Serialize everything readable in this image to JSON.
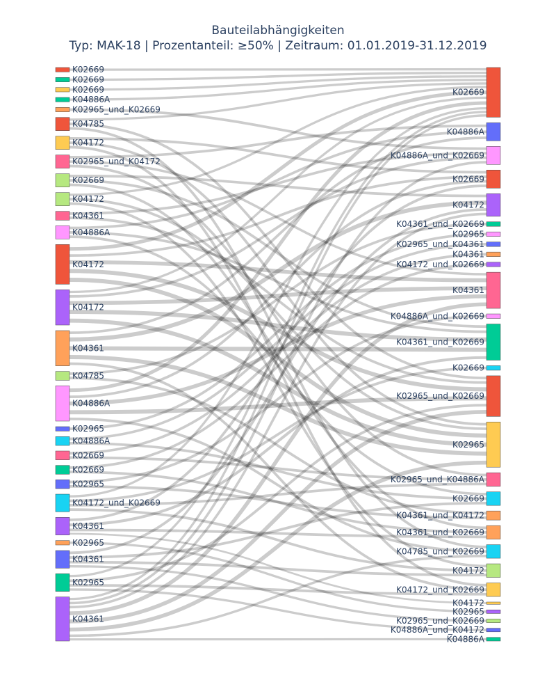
{
  "chart_data": {
    "type": "sankey",
    "title": "Bauteilabhängigkeiten",
    "subtitle": "Typ: MAK-18 | Prozentanteil: ≥50% | Zeitraum: 01.01.2019-31.12.2019",
    "sources": [
      {
        "label": "K02669",
        "value": 1,
        "color": "#EF553B"
      },
      {
        "label": "K02669",
        "value": 1,
        "color": "#00CC96"
      },
      {
        "label": "K02669",
        "value": 1,
        "color": "#FECB52"
      },
      {
        "label": "K04886A",
        "value": 1,
        "color": "#00CC96"
      },
      {
        "label": "K02965_und_K02669",
        "value": 1,
        "color": "#FFA15A"
      },
      {
        "label": "K04785",
        "value": 3,
        "color": "#EF553B"
      },
      {
        "label": "K04172",
        "value": 3,
        "color": "#FECB52"
      },
      {
        "label": "K02965_und_K04172",
        "value": 3,
        "color": "#FF6692"
      },
      {
        "label": "K02669",
        "value": 3,
        "color": "#B6E880"
      },
      {
        "label": "K04172",
        "value": 3,
        "color": "#B6E880"
      },
      {
        "label": "K04361",
        "value": 2,
        "color": "#FF6692"
      },
      {
        "label": "K04886A",
        "value": 3,
        "color": "#FF97FF"
      },
      {
        "label": "K04172",
        "value": 9,
        "color": "#EF553B"
      },
      {
        "label": "K04172",
        "value": 8,
        "color": "#AB63FA"
      },
      {
        "label": "K04361",
        "value": 8,
        "color": "#FFA15A"
      },
      {
        "label": "K04785",
        "value": 2,
        "color": "#B6E880"
      },
      {
        "label": "K04886A",
        "value": 8,
        "color": "#FF97FF"
      },
      {
        "label": "K02965",
        "value": 1,
        "color": "#636EFA"
      },
      {
        "label": "K04886A",
        "value": 2,
        "color": "#19D3F3"
      },
      {
        "label": "K02669",
        "value": 2,
        "color": "#FF6692"
      },
      {
        "label": "K02669",
        "value": 2,
        "color": "#00CC96"
      },
      {
        "label": "K02965",
        "value": 2,
        "color": "#636EFA"
      },
      {
        "label": "K04172_und_K02669",
        "value": 4,
        "color": "#19D3F3"
      },
      {
        "label": "K04361",
        "value": 4,
        "color": "#AB63FA"
      },
      {
        "label": "K02965",
        "value": 1,
        "color": "#FFA15A"
      },
      {
        "label": "K04361",
        "value": 4,
        "color": "#636EFA"
      },
      {
        "label": "K02965",
        "value": 4,
        "color": "#00CC96"
      },
      {
        "label": "K04361",
        "value": 10,
        "color": "#AB63FA"
      }
    ],
    "targets": [
      {
        "label": "K02669",
        "value": 11,
        "color": "#EF553B"
      },
      {
        "label": "K04886A",
        "value": 4,
        "color": "#636EFA"
      },
      {
        "label": "K04886A_und_K02669",
        "value": 4,
        "color": "#FF97FF"
      },
      {
        "label": "K02669",
        "value": 4,
        "color": "#EF553B"
      },
      {
        "label": "K04172",
        "value": 5,
        "color": "#AB63FA"
      },
      {
        "label": "K04361_und_K02669",
        "value": 1,
        "color": "#00CC96"
      },
      {
        "label": "K02965",
        "value": 1,
        "color": "#FF97FF"
      },
      {
        "label": "K02965_und_K04361",
        "value": 1,
        "color": "#636EFA"
      },
      {
        "label": "K04361",
        "value": 1,
        "color": "#FFA15A"
      },
      {
        "label": "K04172_und_K02669",
        "value": 1,
        "color": "#AB63FA"
      },
      {
        "label": "K04361",
        "value": 8,
        "color": "#FF6692"
      },
      {
        "label": "K04886A_und_K02669",
        "value": 1,
        "color": "#FF97FF"
      },
      {
        "label": "K04361_und_K02669",
        "value": 8,
        "color": "#00CC96"
      },
      {
        "label": "K02669",
        "value": 1,
        "color": "#19D3F3"
      },
      {
        "label": "K02965_und_K02669",
        "value": 9,
        "color": "#EF553B"
      },
      {
        "label": "K02965",
        "value": 10,
        "color": "#FECB52"
      },
      {
        "label": "K02965_und_K04886A",
        "value": 3,
        "color": "#FF6692"
      },
      {
        "label": "K02669",
        "value": 3,
        "color": "#19D3F3"
      },
      {
        "label": "K04361_und_K04172",
        "value": 2,
        "color": "#FFA15A"
      },
      {
        "label": "K04361_und_K02669",
        "value": 3,
        "color": "#FFA15A"
      },
      {
        "label": "K04785_und_K02669",
        "value": 3,
        "color": "#19D3F3"
      },
      {
        "label": "K04172",
        "value": 3,
        "color": "#B6E880"
      },
      {
        "label": "K04172_und_K02669",
        "value": 3,
        "color": "#FECB52"
      },
      {
        "label": "K04172",
        "value": 0.5,
        "color": "#FECB52"
      },
      {
        "label": "K02965",
        "value": 0.8,
        "color": "#AB63FA"
      },
      {
        "label": "K02965_und_K02669",
        "value": 0.8,
        "color": "#B6E880"
      },
      {
        "label": "K04886A_und_K04172",
        "value": 0.8,
        "color": "#636EFA"
      },
      {
        "label": "K04886A",
        "value": 0.8,
        "color": "#00CC96"
      }
    ],
    "links": [
      {
        "source": 0,
        "target": 0,
        "value": 1
      },
      {
        "source": 1,
        "target": 0,
        "value": 1
      },
      {
        "source": 2,
        "target": 0,
        "value": 1
      },
      {
        "source": 3,
        "target": 0,
        "value": 1
      },
      {
        "source": 4,
        "target": 2,
        "value": 1
      },
      {
        "source": 5,
        "target": 0,
        "value": 1
      },
      {
        "source": 5,
        "target": 14,
        "value": 1
      },
      {
        "source": 5,
        "target": 20,
        "value": 1
      },
      {
        "source": 6,
        "target": 3,
        "value": 1
      },
      {
        "source": 6,
        "target": 15,
        "value": 1
      },
      {
        "source": 6,
        "target": 22,
        "value": 1
      },
      {
        "source": 7,
        "target": 1,
        "value": 1
      },
      {
        "source": 7,
        "target": 10,
        "value": 1
      },
      {
        "source": 7,
        "target": 16,
        "value": 1
      },
      {
        "source": 8,
        "target": 4,
        "value": 1
      },
      {
        "source": 8,
        "target": 12,
        "value": 1
      },
      {
        "source": 8,
        "target": 19,
        "value": 1
      },
      {
        "source": 9,
        "target": 0,
        "value": 1
      },
      {
        "source": 9,
        "target": 15,
        "value": 1
      },
      {
        "source": 9,
        "target": 21,
        "value": 1
      },
      {
        "source": 10,
        "target": 2,
        "value": 1
      },
      {
        "source": 10,
        "target": 14,
        "value": 1
      },
      {
        "source": 11,
        "target": 1,
        "value": 1
      },
      {
        "source": 11,
        "target": 12,
        "value": 1
      },
      {
        "source": 11,
        "target": 17,
        "value": 1
      },
      {
        "source": 12,
        "target": 0,
        "value": 2
      },
      {
        "source": 12,
        "target": 3,
        "value": 1
      },
      {
        "source": 12,
        "target": 10,
        "value": 2
      },
      {
        "source": 12,
        "target": 14,
        "value": 2
      },
      {
        "source": 12,
        "target": 15,
        "value": 2
      },
      {
        "source": 13,
        "target": 0,
        "value": 1
      },
      {
        "source": 13,
        "target": 2,
        "value": 1
      },
      {
        "source": 13,
        "target": 10,
        "value": 2
      },
      {
        "source": 13,
        "target": 12,
        "value": 2
      },
      {
        "source": 13,
        "target": 15,
        "value": 2
      },
      {
        "source": 14,
        "target": 1,
        "value": 1
      },
      {
        "source": 14,
        "target": 4,
        "value": 2
      },
      {
        "source": 14,
        "target": 12,
        "value": 2
      },
      {
        "source": 14,
        "target": 15,
        "value": 2
      },
      {
        "source": 14,
        "target": 22,
        "value": 1
      },
      {
        "source": 15,
        "target": 5,
        "value": 1
      },
      {
        "source": 15,
        "target": 18,
        "value": 1
      },
      {
        "source": 16,
        "target": 0,
        "value": 2
      },
      {
        "source": 16,
        "target": 3,
        "value": 1
      },
      {
        "source": 16,
        "target": 10,
        "value": 2
      },
      {
        "source": 16,
        "target": 14,
        "value": 2
      },
      {
        "source": 16,
        "target": 20,
        "value": 1
      },
      {
        "source": 17,
        "target": 6,
        "value": 1
      },
      {
        "source": 18,
        "target": 7,
        "value": 1
      },
      {
        "source": 18,
        "target": 17,
        "value": 1
      },
      {
        "source": 19,
        "target": 8,
        "value": 1
      },
      {
        "source": 19,
        "target": 16,
        "value": 1
      },
      {
        "source": 20,
        "target": 9,
        "value": 1
      },
      {
        "source": 20,
        "target": 19,
        "value": 1
      },
      {
        "source": 21,
        "target": 11,
        "value": 1
      },
      {
        "source": 21,
        "target": 18,
        "value": 1
      },
      {
        "source": 22,
        "target": 0,
        "value": 1
      },
      {
        "source": 22,
        "target": 13,
        "value": 1
      },
      {
        "source": 22,
        "target": 16,
        "value": 1
      },
      {
        "source": 22,
        "target": 21,
        "value": 1
      },
      {
        "source": 23,
        "target": 3,
        "value": 1
      },
      {
        "source": 23,
        "target": 12,
        "value": 1
      },
      {
        "source": 23,
        "target": 19,
        "value": 1
      },
      {
        "source": 23,
        "target": 23,
        "value": 0.5
      },
      {
        "source": 24,
        "target": 24,
        "value": 0.8
      },
      {
        "source": 25,
        "target": 4,
        "value": 1
      },
      {
        "source": 25,
        "target": 17,
        "value": 1
      },
      {
        "source": 25,
        "target": 21,
        "value": 1
      },
      {
        "source": 25,
        "target": 25,
        "value": 0.8
      },
      {
        "source": 26,
        "target": 0,
        "value": 1
      },
      {
        "source": 26,
        "target": 14,
        "value": 1
      },
      {
        "source": 26,
        "target": 22,
        "value": 1
      },
      {
        "source": 26,
        "target": 26,
        "value": 0.8
      },
      {
        "source": 27,
        "target": 0,
        "value": 1
      },
      {
        "source": 27,
        "target": 2,
        "value": 1
      },
      {
        "source": 27,
        "target": 4,
        "value": 1
      },
      {
        "source": 27,
        "target": 10,
        "value": 2
      },
      {
        "source": 27,
        "target": 14,
        "value": 2
      },
      {
        "source": 27,
        "target": 15,
        "value": 2
      },
      {
        "source": 27,
        "target": 20,
        "value": 1
      },
      {
        "source": 27,
        "target": 27,
        "value": 0.8
      }
    ]
  }
}
